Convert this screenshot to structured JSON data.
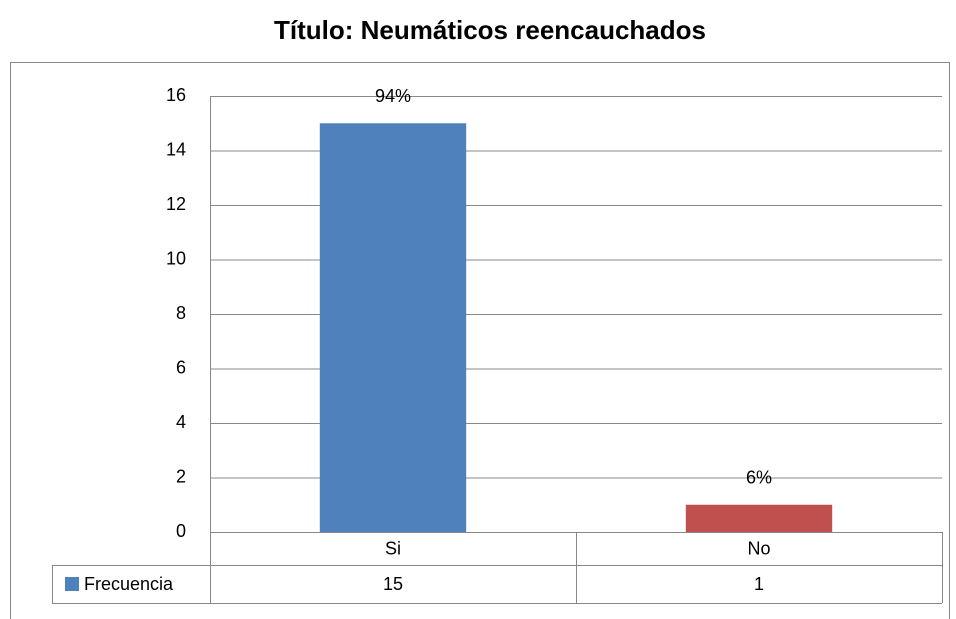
{
  "chart_data": {
    "type": "bar",
    "title": "Título: Neumáticos reencauchados",
    "categories": [
      "Si",
      "No"
    ],
    "series": [
      {
        "name": "Frecuencia",
        "color": "#4f81bd",
        "values": [
          15,
          1
        ]
      }
    ],
    "bar_colors": [
      "#4f81bd",
      "#c0504d"
    ],
    "data_labels": [
      "94%",
      "6%"
    ],
    "ylim": [
      0,
      16
    ],
    "yticks": [
      0,
      2,
      4,
      6,
      8,
      10,
      12,
      14,
      16
    ],
    "grid": true
  }
}
